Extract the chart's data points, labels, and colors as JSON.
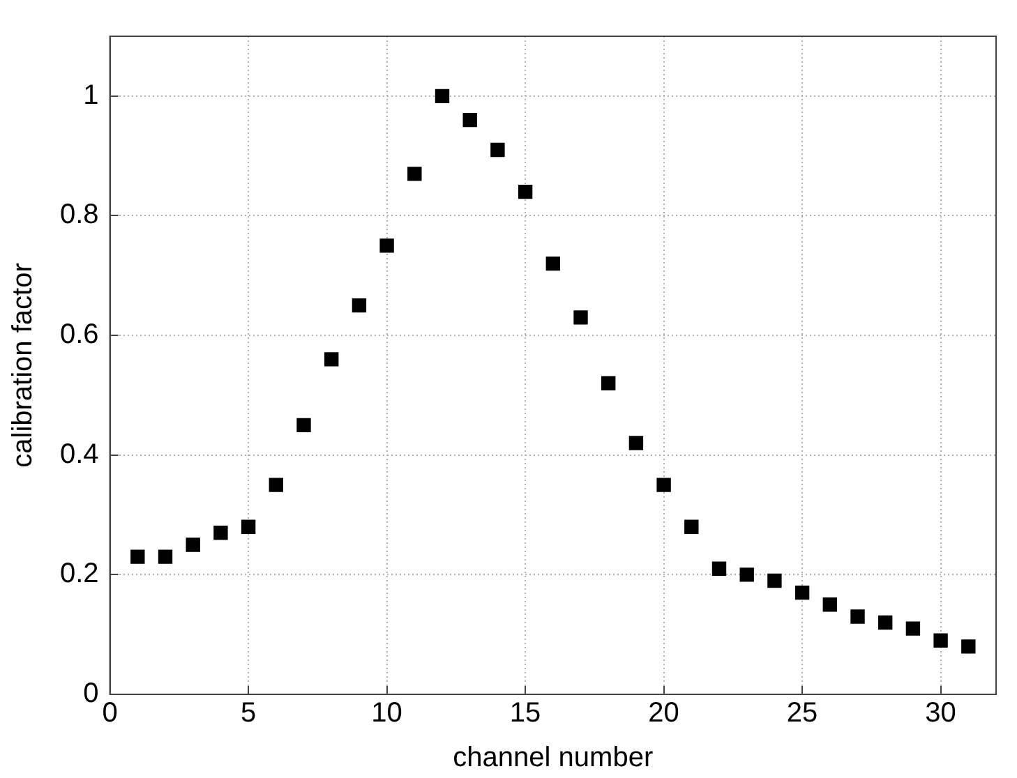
{
  "chart_data": {
    "type": "scatter",
    "xlabel": "channel number",
    "ylabel": "calibration factor",
    "x": [
      1,
      2,
      3,
      4,
      5,
      6,
      7,
      8,
      9,
      10,
      11,
      12,
      13,
      14,
      15,
      16,
      17,
      18,
      19,
      20,
      21,
      22,
      23,
      24,
      25,
      26,
      27,
      28,
      29,
      30,
      31
    ],
    "series": [
      {
        "color": "#000000",
        "values": [
          0.23,
          0.23,
          0.25,
          0.27,
          0.28,
          0.35,
          0.45,
          0.56,
          0.65,
          0.75,
          0.87,
          1.0,
          0.96,
          0.91,
          0.84,
          0.72,
          0.63,
          0.52,
          0.42,
          0.35,
          0.28,
          0.21,
          0.2,
          0.19,
          0.17,
          0.15,
          0.13,
          0.12,
          0.11,
          0.09,
          0.08
        ]
      }
    ],
    "xlim": [
      0,
      32
    ],
    "xticks": [
      0,
      5,
      10,
      15,
      20,
      25,
      30
    ],
    "ylim": [
      0,
      1.1
    ],
    "yticks": [
      0,
      0.2,
      0.4,
      0.6,
      0.8,
      1
    ],
    "grid": true,
    "marker": "square",
    "legend": false
  }
}
